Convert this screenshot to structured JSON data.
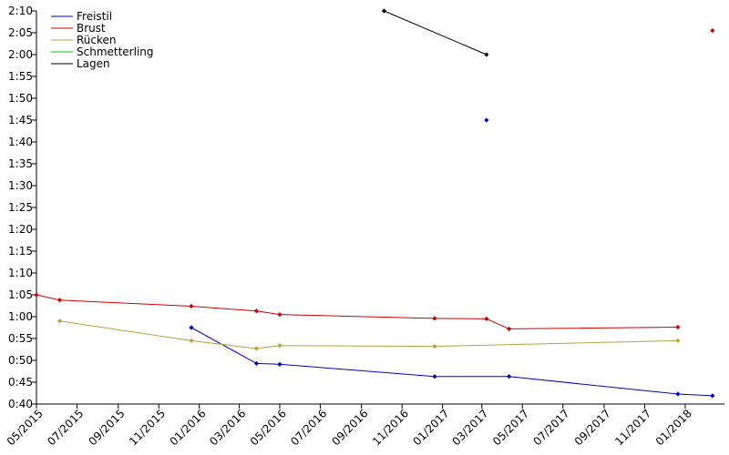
{
  "chart_data": {
    "type": "line",
    "title": "",
    "xlabel": "",
    "ylabel": "",
    "legend_position": "top-left",
    "grid": false,
    "ylim": [
      40,
      130
    ],
    "y_ticks": [
      {
        "value": 40,
        "label": "0:40"
      },
      {
        "value": 45,
        "label": "0:45"
      },
      {
        "value": 50,
        "label": "0:50"
      },
      {
        "value": 55,
        "label": "0:55"
      },
      {
        "value": 60,
        "label": "1:00"
      },
      {
        "value": 65,
        "label": "1:05"
      },
      {
        "value": 70,
        "label": "1:10"
      },
      {
        "value": 75,
        "label": "1:15"
      },
      {
        "value": 80,
        "label": "1:20"
      },
      {
        "value": 85,
        "label": "1:25"
      },
      {
        "value": 90,
        "label": "1:30"
      },
      {
        "value": 95,
        "label": "1:35"
      },
      {
        "value": 100,
        "label": "1:40"
      },
      {
        "value": 105,
        "label": "1:45"
      },
      {
        "value": 110,
        "label": "1:50"
      },
      {
        "value": 115,
        "label": "1:55"
      },
      {
        "value": 120,
        "label": "2:00"
      },
      {
        "value": 125,
        "label": "2:05"
      },
      {
        "value": 130,
        "label": "2:10"
      }
    ],
    "xlim": [
      "2015-05-01",
      "2018-03-01"
    ],
    "x_ticks": [
      {
        "value": "2015-05-01",
        "label": "05/2015"
      },
      {
        "value": "2015-07-01",
        "label": "07/2015"
      },
      {
        "value": "2015-09-01",
        "label": "09/2015"
      },
      {
        "value": "2015-11-01",
        "label": "11/2015"
      },
      {
        "value": "2016-01-01",
        "label": "01/2016"
      },
      {
        "value": "2016-03-01",
        "label": "03/2016"
      },
      {
        "value": "2016-05-01",
        "label": "05/2016"
      },
      {
        "value": "2016-07-01",
        "label": "07/2016"
      },
      {
        "value": "2016-09-01",
        "label": "09/2016"
      },
      {
        "value": "2016-11-01",
        "label": "11/2016"
      },
      {
        "value": "2017-01-01",
        "label": "01/2017"
      },
      {
        "value": "2017-03-01",
        "label": "03/2017"
      },
      {
        "value": "2017-05-01",
        "label": "05/2017"
      },
      {
        "value": "2017-07-01",
        "label": "07/2017"
      },
      {
        "value": "2017-09-01",
        "label": "09/2017"
      },
      {
        "value": "2017-11-01",
        "label": "11/2017"
      },
      {
        "value": "2018-01-01",
        "label": "01/2018"
      }
    ],
    "series": [
      {
        "name": "Freistil",
        "color": "#0000cc",
        "segments": [
          [
            {
              "x": "2015-12-20",
              "y": 57.5
            },
            {
              "x": "2016-03-27",
              "y": 49.3
            },
            {
              "x": "2016-05-01",
              "y": 49.1
            },
            {
              "x": "2016-12-20",
              "y": 46.3
            },
            {
              "x": "2017-04-11",
              "y": 46.3
            },
            {
              "x": "2017-12-21",
              "y": 42.3
            },
            {
              "x": "2018-02-11",
              "y": 41.9
            }
          ],
          [
            {
              "x": "2017-03-08",
              "y": 105
            }
          ]
        ]
      },
      {
        "name": "Brust",
        "color": "#cc0000",
        "segments": [
          [
            {
              "x": "2015-05-01",
              "y": 65
            },
            {
              "x": "2015-06-05",
              "y": 63.8
            },
            {
              "x": "2015-12-20",
              "y": 62.4
            },
            {
              "x": "2016-03-27",
              "y": 61.3
            },
            {
              "x": "2016-05-01",
              "y": 60.5
            },
            {
              "x": "2016-12-20",
              "y": 59.6
            },
            {
              "x": "2017-03-08",
              "y": 59.5
            },
            {
              "x": "2017-04-11",
              "y": 57.2
            },
            {
              "x": "2017-12-21",
              "y": 57.6
            }
          ],
          [
            {
              "x": "2018-02-11",
              "y": 125.5
            }
          ]
        ]
      },
      {
        "name": "Rücken",
        "color": "#b8a040",
        "segments": [
          [
            {
              "x": "2015-06-05",
              "y": 59
            },
            {
              "x": "2015-12-20",
              "y": 54.5
            },
            {
              "x": "2016-03-27",
              "y": 52.7
            },
            {
              "x": "2016-05-01",
              "y": 53.4
            },
            {
              "x": "2016-12-20",
              "y": 53.2
            },
            {
              "x": "2017-12-21",
              "y": 54.5
            }
          ]
        ]
      },
      {
        "name": "Schmetterling",
        "color": "#00cc00",
        "segments": []
      },
      {
        "name": "Lagen",
        "color": "#000000",
        "segments": [
          [
            {
              "x": "2016-10-05",
              "y": 130
            },
            {
              "x": "2017-03-08",
              "y": 120
            }
          ]
        ]
      }
    ]
  }
}
